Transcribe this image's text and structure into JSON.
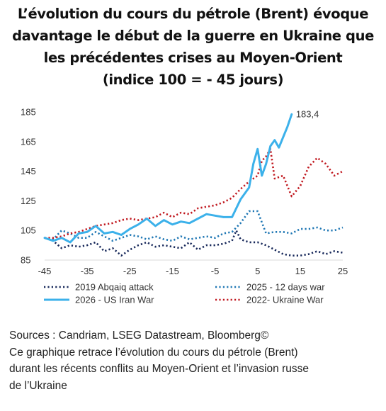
{
  "title_lines": [
    "L’évolution du cours du pétrole (Brent) évoque",
    "davantage le début de la guerre en Ukraine que",
    "les précédentes crises au Moyen-Orient",
    "(indice 100 = - 45 jours)"
  ],
  "footer_lines": [
    "Sources : Candriam, LSEG Datastream, Bloomberg©",
    "Ce graphique retrace l’évolution du cours du pétrole (Brent)",
    "durant les récents conflits au Moyen-Orient et l’invasion russe",
    "de l’Ukraine"
  ],
  "chart_data": {
    "type": "line",
    "title": "L’évolution du cours du pétrole (Brent) évoque davantage le début de la guerre en Ukraine que les précédentes crises au Moyen-Orient (indice 100 = - 45 jours)",
    "xlim": [
      -45,
      25
    ],
    "ylim": [
      85,
      185
    ],
    "xticks": [
      -45,
      -35,
      -25,
      -15,
      -5,
      5,
      15,
      25
    ],
    "yticks": [
      85,
      105,
      125,
      145,
      165,
      185
    ],
    "legend_position": "bottom",
    "end_label": "183,4",
    "series": [
      {
        "name": "2019 Abqaiq attack",
        "color": "#17285a",
        "style": "dotted",
        "x": [
          -45,
          -43,
          -41,
          -39,
          -37,
          -35,
          -33,
          -31,
          -29,
          -27,
          -25,
          -23,
          -21,
          -19,
          -17,
          -15,
          -13,
          -11,
          -9,
          -7,
          -5,
          -3,
          -1,
          0,
          1,
          2,
          3,
          5,
          7,
          9,
          11,
          13,
          15,
          17,
          19,
          21,
          23,
          25
        ],
        "y": [
          100,
          98,
          93,
          95,
          94,
          95,
          97,
          91,
          93,
          88,
          92,
          95,
          97,
          94,
          95,
          94,
          93,
          97,
          92,
          95,
          95,
          96,
          98,
          105,
          99,
          98,
          97,
          97,
          95,
          92,
          89,
          88,
          88,
          89,
          91,
          89,
          91,
          90
        ]
      },
      {
        "name": "2025 - 12 days war",
        "color": "#1f77b4",
        "style": "dotted",
        "x": [
          -45,
          -43,
          -41,
          -39,
          -37,
          -35,
          -33,
          -31,
          -29,
          -27,
          -25,
          -23,
          -21,
          -19,
          -17,
          -15,
          -13,
          -11,
          -9,
          -7,
          -5,
          -3,
          -1,
          1,
          3,
          5,
          7,
          9,
          11,
          13,
          15,
          17,
          19,
          21,
          23,
          25
        ],
        "y": [
          100,
          99,
          105,
          103,
          100,
          100,
          104,
          101,
          98,
          100,
          102,
          101,
          99,
          101,
          99,
          98,
          101,
          99,
          100,
          101,
          100,
          103,
          104,
          110,
          118,
          118,
          103,
          104,
          104,
          103,
          106,
          106,
          107,
          105,
          105,
          107
        ]
      },
      {
        "name": "2026 - US Iran War",
        "color": "#3cb1ea",
        "style": "solid",
        "x": [
          -45,
          -43,
          -41,
          -39,
          -37,
          -35,
          -33,
          -31,
          -29,
          -27,
          -25,
          -23,
          -21,
          -19,
          -17,
          -15,
          -13,
          -11,
          -9,
          -7,
          -5,
          -3,
          -1,
          1,
          3,
          4,
          5,
          6,
          7,
          8,
          9,
          10,
          11,
          12,
          13
        ],
        "y": [
          100,
          98,
          100,
          97,
          103,
          104,
          108,
          103,
          104,
          102,
          106,
          109,
          113,
          108,
          112,
          109,
          111,
          110,
          113,
          116,
          115,
          114,
          114,
          126,
          134,
          150,
          160,
          142,
          150,
          162,
          166,
          161,
          168,
          175,
          183.4
        ]
      },
      {
        "name": "2022- Ukraine War",
        "color": "#c0171e",
        "style": "dotted",
        "x": [
          -45,
          -43,
          -41,
          -39,
          -37,
          -35,
          -33,
          -31,
          -29,
          -27,
          -25,
          -23,
          -21,
          -19,
          -17,
          -15,
          -13,
          -11,
          -9,
          -7,
          -5,
          -3,
          -1,
          1,
          3,
          5,
          6,
          7,
          8,
          9,
          11,
          13,
          15,
          17,
          19,
          21,
          23,
          25
        ],
        "y": [
          100,
          100,
          101,
          103,
          104,
          106,
          108,
          109,
          110,
          112,
          113,
          112,
          113,
          114,
          117,
          114,
          117,
          116,
          120,
          121,
          122,
          124,
          127,
          133,
          138,
          142,
          152,
          155,
          160,
          140,
          142,
          128,
          135,
          148,
          154,
          150,
          142,
          145
        ]
      }
    ]
  }
}
